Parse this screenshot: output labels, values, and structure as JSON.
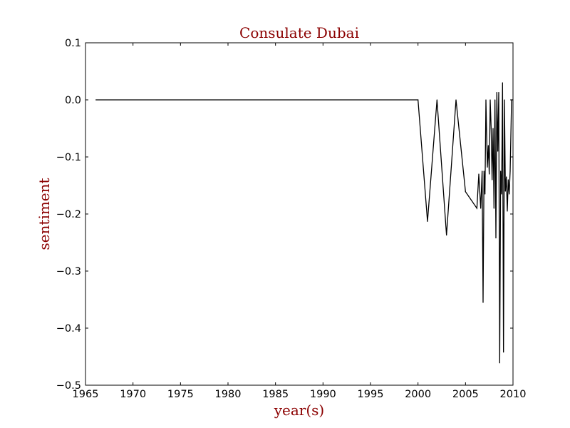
{
  "chart_data": {
    "type": "line",
    "title": "Consulate Dubai",
    "xlabel": "year(s)",
    "ylabel": "sentiment",
    "xlim": [
      1965,
      2010
    ],
    "ylim": [
      -0.5,
      0.1
    ],
    "xticks": [
      1965,
      1970,
      1975,
      1980,
      1985,
      1990,
      1995,
      2000,
      2005,
      2010
    ],
    "yticks": [
      0.1,
      0.0,
      -0.1,
      -0.2,
      -0.3,
      -0.4,
      -0.5
    ],
    "xtick_labels": [
      "1965",
      "1970",
      "1975",
      "1980",
      "1985",
      "1990",
      "1995",
      "2000",
      "2005",
      "2010"
    ],
    "ytick_labels": [
      "0.1",
      "0.0",
      "−0.1",
      "−0.2",
      "−0.3",
      "−0.4",
      "−0.5"
    ],
    "grid": false,
    "series": [
      {
        "name": "sentiment",
        "color": "#000000",
        "x": [
          1966.1,
          2000.0,
          2001.0,
          2002.0,
          2003.0,
          2004.0,
          2005.0,
          2006.2,
          2006.4,
          2006.6,
          2006.75,
          2006.85,
          2006.95,
          2007.05,
          2007.15,
          2007.3,
          2007.4,
          2007.5,
          2007.6,
          2007.7,
          2007.8,
          2007.9,
          2008.0,
          2008.1,
          2008.2,
          2008.3,
          2008.4,
          2008.5,
          2008.6,
          2008.7,
          2008.8,
          2008.9,
          2009.0,
          2009.1,
          2009.2,
          2009.3,
          2009.4,
          2009.5,
          2009.6,
          2009.7,
          2009.85,
          2010.0
        ],
        "y": [
          0.0,
          0.0,
          -0.213,
          0.0,
          -0.237,
          0.0,
          -0.161,
          -0.19,
          -0.13,
          -0.19,
          -0.125,
          -0.355,
          -0.125,
          -0.165,
          0.0,
          -0.118,
          -0.08,
          -0.13,
          0.0,
          -0.05,
          -0.14,
          -0.05,
          -0.19,
          0.0,
          -0.242,
          0.013,
          -0.09,
          0.013,
          -0.461,
          -0.125,
          -0.165,
          0.03,
          -0.442,
          0.0,
          -0.16,
          -0.135,
          -0.195,
          -0.14,
          -0.165,
          -0.125,
          0.0,
          0.0
        ]
      }
    ],
    "colors": {
      "title": "#8b0000",
      "axis_title": "#8b0000",
      "line": "#000000",
      "frame": "#000000"
    }
  }
}
